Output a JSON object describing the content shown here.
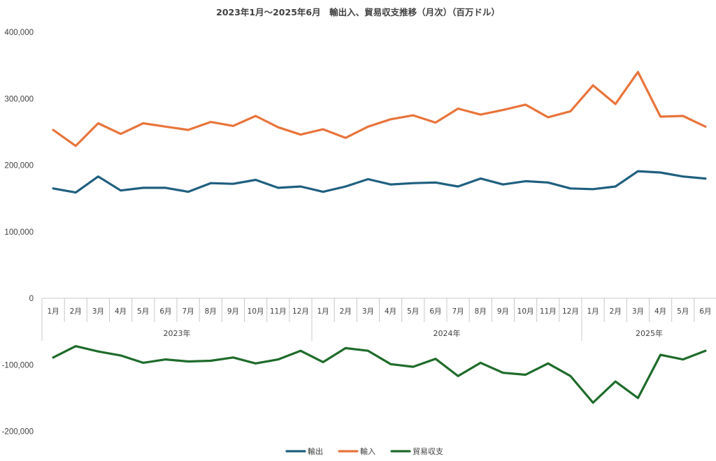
{
  "chart_data": {
    "type": "line",
    "title": "2023年1月～2025年6月　輸出入、貿易収支推移（月次）（百万ドル）",
    "categories": [
      "1月",
      "2月",
      "3月",
      "4月",
      "5月",
      "6月",
      "7月",
      "8月",
      "9月",
      "10月",
      "11月",
      "12月",
      "1月",
      "2月",
      "3月",
      "4月",
      "5月",
      "6月",
      "7月",
      "8月",
      "9月",
      "10月",
      "11月",
      "12月",
      "1月",
      "2月",
      "3月",
      "4月",
      "5月",
      "6月"
    ],
    "year_groups": [
      {
        "label": "2023年",
        "count": 12
      },
      {
        "label": "2024年",
        "count": 12
      },
      {
        "label": "2025年",
        "count": 6
      }
    ],
    "ylim": [
      -200000,
      400000
    ],
    "yticks": [
      {
        "value": 400000,
        "label": "400,000"
      },
      {
        "value": 300000,
        "label": "300,000"
      },
      {
        "value": 200000,
        "label": "200,000"
      },
      {
        "value": 100000,
        "label": "100,000"
      },
      {
        "value": 0,
        "label": "0"
      },
      {
        "value": -100000,
        "label": "-100,000"
      },
      {
        "value": -200000,
        "label": "-200,000"
      }
    ],
    "negative_tick_color": "#e00000",
    "grid": false,
    "legend_position": "bottom",
    "series": [
      {
        "name": "輸出",
        "color": "#1f5f7f",
        "values": [
          165000,
          159000,
          183000,
          162000,
          166000,
          166000,
          160000,
          173000,
          172000,
          178000,
          166000,
          168000,
          160000,
          168000,
          179000,
          171000,
          173000,
          174000,
          168000,
          180000,
          171000,
          176000,
          174000,
          165000,
          164000,
          168000,
          191000,
          189000,
          183000,
          180000
        ]
      },
      {
        "name": "輸入",
        "color": "#e8743b",
        "values": [
          253000,
          229000,
          263000,
          247000,
          263000,
          258000,
          253000,
          265000,
          259000,
          274000,
          257000,
          246000,
          254000,
          241000,
          258000,
          269000,
          275000,
          264000,
          285000,
          276000,
          283000,
          291000,
          272000,
          281000,
          320000,
          292000,
          340000,
          273000,
          274000,
          258000
        ]
      },
      {
        "name": "貿易収支",
        "color": "#1e6b2a",
        "values": [
          -89000,
          -72000,
          -80000,
          -86000,
          -97000,
          -92000,
          -95000,
          -94000,
          -89000,
          -98000,
          -92000,
          -79000,
          -96000,
          -75000,
          -79000,
          -99000,
          -103000,
          -91000,
          -117000,
          -97000,
          -112000,
          -115000,
          -98000,
          -117000,
          -157000,
          -125000,
          -150000,
          -85000,
          -92000,
          -79000
        ]
      }
    ]
  }
}
